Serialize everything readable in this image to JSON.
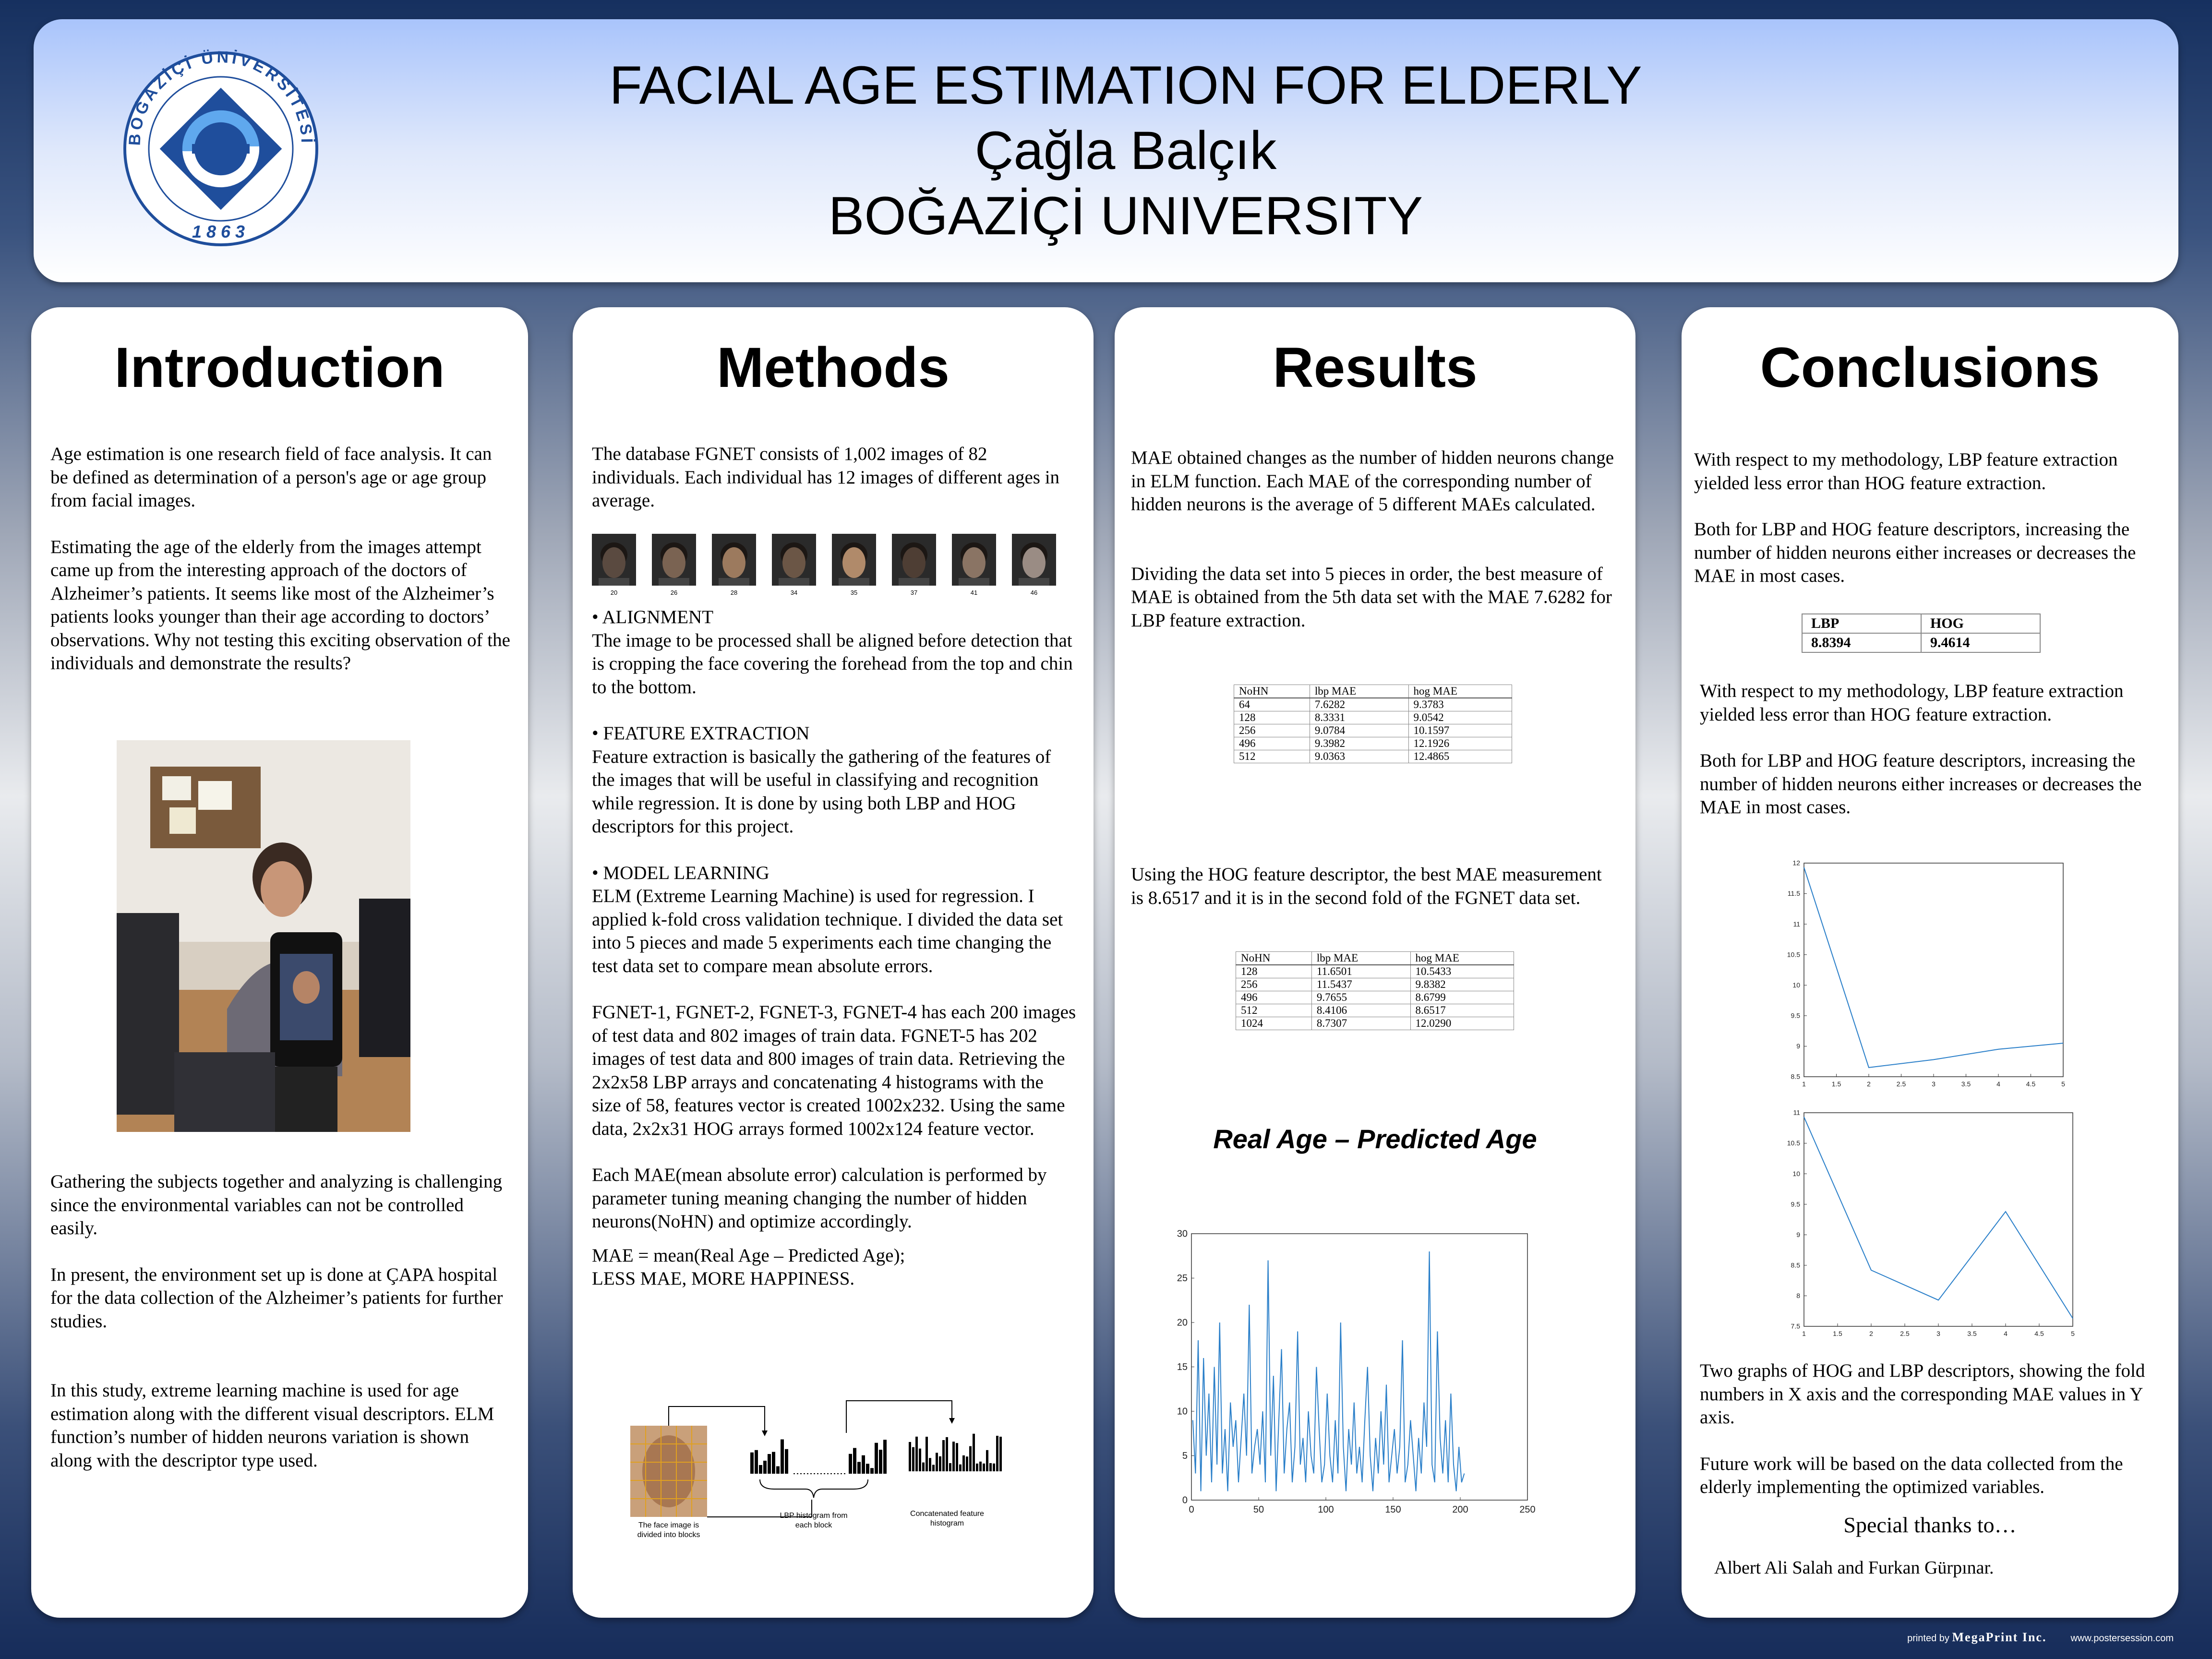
{
  "header": {
    "title": "FACIAL AGE ESTIMATION FOR ELDERLY",
    "author": "Çağla Balçık",
    "university": "BOĞAZİÇİ UNIVERSITY",
    "logo_text_top": "BOĞAZİÇİ ÜNİVERSİTESİ",
    "logo_year": "1863"
  },
  "introduction": {
    "heading": "Introduction",
    "p1": "Age estimation is one research field of face analysis.  It can be defined as determination of a person's age or age group from facial images.",
    "p2": "Estimating the age of the elderly from the images attempt came up from the interesting approach of the doctors of Alzheimer’s patients. It seems like most of the Alzheimer’s patients looks younger than their age according to doctors’ observations. Why not testing this exciting observation of the individuals and demonstrate the results?",
    "p3": "Gathering the subjects together and analyzing is challenging since the environmental variables can not be controlled easily.",
    "p4": "In present, the environment set up is done at ÇAPA hospital for the data collection of the Alzheimer’s patients for further studies.",
    "p5": "In this study, extreme learning machine is used for age estimation along with the different visual descriptors. ELM function’s number of hidden neurons variation is shown along with the descriptor type used."
  },
  "methods": {
    "heading": "Methods",
    "p1": "The database FGNET consists of 1,002 images of 82 individuals. Each individual has 12 images of different ages in average.",
    "face_ages": [
      "20",
      "26",
      "28",
      "34",
      "35",
      "37",
      "41",
      "46"
    ],
    "alignment_title": "•  ALIGNMENT",
    "alignment_text": "The image to be processed shall be aligned before detection that is cropping the face covering the forehead from the top and chin to the bottom.",
    "feature_title": "•  FEATURE EXTRACTION",
    "feature_text": "Feature extraction is basically the gathering of the features of the images that will be useful in classifying and recognition while regression. It is done by using both LBP and HOG descriptors for this project.",
    "model_title": "•  MODEL LEARNING",
    "model_text": "ELM (Extreme Learning Machine) is used for regression. I applied k-fold cross validation technique. I divided the data set into 5 pieces and made 5 experiments each time changing the test data set to compare mean absolute errors.",
    "fgnet_text": "FGNET-1, FGNET-2, FGNET-3, FGNET-4 has each 200 images of test data and 802 images of train data. FGNET-5 has 202 images of test data and 800 images of train data. Retrieving the 2x2x58 LBP arrays and concatenating 4 histograms with the size of 58, features vector is created 1002x232. Using the same data, 2x2x31 HOG arrays formed 1002x124 feature vector.",
    "mae_text": "Each MAE(mean absolute error) calculation is performed by parameter tuning meaning changing the number of hidden neurons(NoHN) and optimize accordingly.",
    "formula1": "MAE = mean(Real Age – Predicted Age);",
    "formula2": "LESS MAE, MORE HAPPINESS.",
    "diagram_label1": "The face image is divided into blocks",
    "diagram_label2": "LBP histogram from each block",
    "diagram_label3": "Concatenated feature histogram"
  },
  "results": {
    "heading": "Results",
    "p1": "MAE obtained changes as the number of hidden neurons change in ELM function. Each MAE of the corresponding number of hidden neurons is the average of 5 different MAEs calculated.",
    "p2": "Dividing the data set into 5 pieces in order, the best measure of MAE is obtained from the 5th data set with the MAE 7.6282 for LBP feature extraction.",
    "table1": {
      "headers": [
        "NoHN",
        "lbp MAE",
        "hog MAE"
      ],
      "rows": [
        [
          "64",
          "7.6282",
          "9.3783"
        ],
        [
          "128",
          "8.3331",
          "9.0542"
        ],
        [
          "256",
          "9.0784",
          "10.1597"
        ],
        [
          "496",
          "9.3982",
          "12.1926"
        ],
        [
          "512",
          "9.0363",
          "12.4865"
        ]
      ]
    },
    "p3": "Using the HOG feature descriptor, the best MAE measurement is 8.6517 and it is in the second fold of the FGNET data set.",
    "table2": {
      "headers": [
        "NoHN",
        "lbp MAE",
        "hog MAE"
      ],
      "rows": [
        [
          "128",
          "11.6501",
          "10.5433"
        ],
        [
          "256",
          "11.5437",
          "9.8382"
        ],
        [
          "496",
          "9.7655",
          "8.6799"
        ],
        [
          "512",
          "8.4106",
          "8.6517"
        ],
        [
          "1024",
          "8.7307",
          "12.0290"
        ]
      ]
    },
    "chart_title": "Real Age – Predicted Age"
  },
  "conclusions": {
    "heading": "Conclusions",
    "p1": "With respect to my methodology, LBP feature extraction yielded less error than HOG feature extraction.",
    "p2": "Both for LBP and HOG feature descriptors, increasing the number of hidden neurons either increases or decreases the MAE in most cases.",
    "table": {
      "headers": [
        "LBP",
        "HOG"
      ],
      "row": [
        "8.8394",
        "9.4614"
      ]
    },
    "p3": "With respect to my methodology, LBP feature extraction yielded less error than HOG feature extraction.",
    "p4": "Both for LBP and HOG feature descriptors, increasing the number of hidden neurons either increases or decreases the MAE in most cases.",
    "p5": "Two graphs of HOG and LBP descriptors, showing the fold numbers in X axis and the corresponding MAE values in Y axis.",
    "p6": "Future work will be based on the data collected from the elderly implementing the optimized variables.",
    "thanks": "Special thanks to…",
    "names": "Albert Ali Salah and Furkan Gürpınar."
  },
  "footer": {
    "printed_by": "printed by",
    "brand": "MegaPrint Inc.",
    "url": "www.postersession.com"
  },
  "colors": {
    "line": "#2a7fc9",
    "logo_blue": "#1f4e9c"
  },
  "chart_data": [
    {
      "type": "line",
      "title": "Real Age – Predicted Age",
      "xlim": [
        0,
        250
      ],
      "ylim": [
        0,
        30
      ],
      "xticks": [
        0,
        50,
        100,
        150,
        200,
        250
      ],
      "yticks": [
        0,
        5,
        10,
        15,
        20,
        25,
        30
      ],
      "x": [
        1,
        3,
        5,
        7,
        9,
        11,
        13,
        15,
        17,
        19,
        21,
        23,
        25,
        27,
        29,
        31,
        33,
        35,
        37,
        39,
        41,
        43,
        45,
        47,
        49,
        51,
        53,
        55,
        57,
        59,
        61,
        63,
        65,
        67,
        69,
        71,
        73,
        75,
        77,
        79,
        81,
        83,
        85,
        87,
        89,
        91,
        93,
        95,
        97,
        99,
        101,
        103,
        105,
        107,
        109,
        111,
        113,
        115,
        117,
        119,
        121,
        123,
        125,
        127,
        129,
        131,
        133,
        135,
        137,
        139,
        141,
        143,
        145,
        147,
        149,
        151,
        153,
        155,
        157,
        159,
        161,
        163,
        165,
        167,
        169,
        171,
        173,
        175,
        177,
        179,
        181,
        183,
        185,
        187,
        189,
        191,
        193,
        195,
        197,
        199,
        201,
        203
      ],
      "values": [
        9,
        3,
        18,
        1,
        16,
        5,
        12,
        2,
        15,
        4,
        20,
        3,
        8,
        1,
        11,
        6,
        9,
        2,
        7,
        12,
        5,
        22,
        3,
        6,
        8,
        4,
        10,
        2,
        27,
        5,
        14,
        1,
        9,
        17,
        3,
        8,
        11,
        2,
        6,
        19,
        4,
        7,
        2,
        10,
        5,
        3,
        15,
        8,
        2,
        4,
        12,
        5,
        2,
        9,
        3,
        20,
        6,
        1,
        8,
        4,
        11,
        3,
        6,
        2,
        9,
        15,
        5,
        1,
        7,
        3,
        10,
        4,
        13,
        2,
        5,
        8,
        3,
        6,
        18,
        2,
        4,
        9,
        5,
        1,
        7,
        3,
        11,
        6,
        28,
        4,
        2,
        19,
        7,
        3,
        9,
        2,
        12,
        4,
        1,
        6,
        2,
        3
      ]
    },
    {
      "type": "line",
      "xlim": [
        1,
        5
      ],
      "ylim": [
        8.5,
        12
      ],
      "xticks": [
        1,
        1.5,
        2,
        2.5,
        3,
        3.5,
        4,
        4.5,
        5
      ],
      "yticks": [
        8.5,
        9,
        9.5,
        10,
        10.5,
        11,
        11.5,
        12
      ],
      "x": [
        1,
        2,
        3,
        4,
        5
      ],
      "values": [
        11.93,
        8.65,
        8.78,
        8.95,
        9.05
      ]
    },
    {
      "type": "line",
      "xlim": [
        1,
        5
      ],
      "ylim": [
        7.5,
        11
      ],
      "xticks": [
        1,
        1.5,
        2,
        2.5,
        3,
        3.5,
        4,
        4.5,
        5
      ],
      "yticks": [
        7.5,
        8,
        8.5,
        9,
        9.5,
        10,
        10.5,
        11
      ],
      "x": [
        1,
        2,
        3,
        4,
        5
      ],
      "values": [
        10.93,
        8.42,
        7.93,
        9.38,
        7.63
      ]
    }
  ]
}
